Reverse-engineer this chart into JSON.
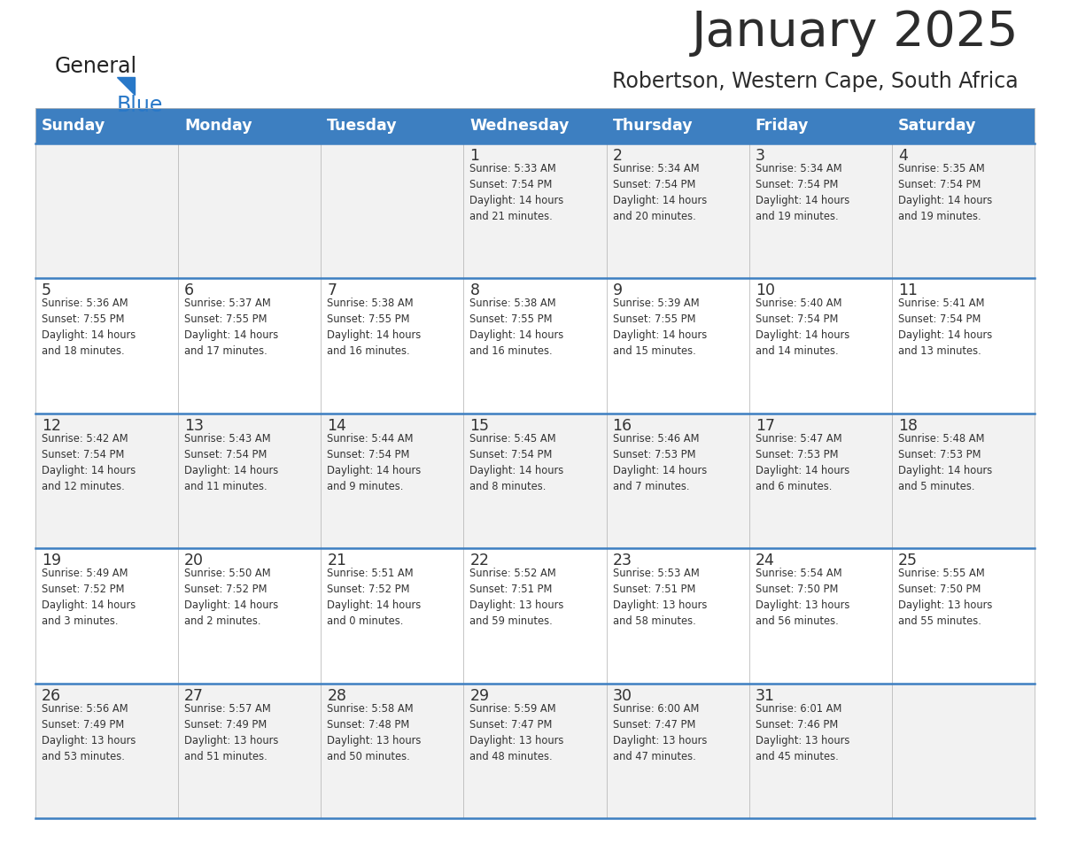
{
  "title": "January 2025",
  "subtitle": "Robertson, Western Cape, South Africa",
  "days_of_week": [
    "Sunday",
    "Monday",
    "Tuesday",
    "Wednesday",
    "Thursday",
    "Friday",
    "Saturday"
  ],
  "header_bg": "#3d7fc1",
  "header_text": "#ffffff",
  "row_bg_odd": "#f2f2f2",
  "row_bg_even": "#ffffff",
  "separator_color": "#3d7fc1",
  "text_color": "#333333",
  "title_color": "#2c2c2c",
  "subtitle_color": "#2c2c2c",
  "generalblue_black": "#222222",
  "generalblue_blue": "#2878c8",
  "calendar_data": [
    [
      {
        "day": null,
        "info": null
      },
      {
        "day": null,
        "info": null
      },
      {
        "day": null,
        "info": null
      },
      {
        "day": "1",
        "info": "Sunrise: 5:33 AM\nSunset: 7:54 PM\nDaylight: 14 hours\nand 21 minutes."
      },
      {
        "day": "2",
        "info": "Sunrise: 5:34 AM\nSunset: 7:54 PM\nDaylight: 14 hours\nand 20 minutes."
      },
      {
        "day": "3",
        "info": "Sunrise: 5:34 AM\nSunset: 7:54 PM\nDaylight: 14 hours\nand 19 minutes."
      },
      {
        "day": "4",
        "info": "Sunrise: 5:35 AM\nSunset: 7:54 PM\nDaylight: 14 hours\nand 19 minutes."
      }
    ],
    [
      {
        "day": "5",
        "info": "Sunrise: 5:36 AM\nSunset: 7:55 PM\nDaylight: 14 hours\nand 18 minutes."
      },
      {
        "day": "6",
        "info": "Sunrise: 5:37 AM\nSunset: 7:55 PM\nDaylight: 14 hours\nand 17 minutes."
      },
      {
        "day": "7",
        "info": "Sunrise: 5:38 AM\nSunset: 7:55 PM\nDaylight: 14 hours\nand 16 minutes."
      },
      {
        "day": "8",
        "info": "Sunrise: 5:38 AM\nSunset: 7:55 PM\nDaylight: 14 hours\nand 16 minutes."
      },
      {
        "day": "9",
        "info": "Sunrise: 5:39 AM\nSunset: 7:55 PM\nDaylight: 14 hours\nand 15 minutes."
      },
      {
        "day": "10",
        "info": "Sunrise: 5:40 AM\nSunset: 7:54 PM\nDaylight: 14 hours\nand 14 minutes."
      },
      {
        "day": "11",
        "info": "Sunrise: 5:41 AM\nSunset: 7:54 PM\nDaylight: 14 hours\nand 13 minutes."
      }
    ],
    [
      {
        "day": "12",
        "info": "Sunrise: 5:42 AM\nSunset: 7:54 PM\nDaylight: 14 hours\nand 12 minutes."
      },
      {
        "day": "13",
        "info": "Sunrise: 5:43 AM\nSunset: 7:54 PM\nDaylight: 14 hours\nand 11 minutes."
      },
      {
        "day": "14",
        "info": "Sunrise: 5:44 AM\nSunset: 7:54 PM\nDaylight: 14 hours\nand 9 minutes."
      },
      {
        "day": "15",
        "info": "Sunrise: 5:45 AM\nSunset: 7:54 PM\nDaylight: 14 hours\nand 8 minutes."
      },
      {
        "day": "16",
        "info": "Sunrise: 5:46 AM\nSunset: 7:53 PM\nDaylight: 14 hours\nand 7 minutes."
      },
      {
        "day": "17",
        "info": "Sunrise: 5:47 AM\nSunset: 7:53 PM\nDaylight: 14 hours\nand 6 minutes."
      },
      {
        "day": "18",
        "info": "Sunrise: 5:48 AM\nSunset: 7:53 PM\nDaylight: 14 hours\nand 5 minutes."
      }
    ],
    [
      {
        "day": "19",
        "info": "Sunrise: 5:49 AM\nSunset: 7:52 PM\nDaylight: 14 hours\nand 3 minutes."
      },
      {
        "day": "20",
        "info": "Sunrise: 5:50 AM\nSunset: 7:52 PM\nDaylight: 14 hours\nand 2 minutes."
      },
      {
        "day": "21",
        "info": "Sunrise: 5:51 AM\nSunset: 7:52 PM\nDaylight: 14 hours\nand 0 minutes."
      },
      {
        "day": "22",
        "info": "Sunrise: 5:52 AM\nSunset: 7:51 PM\nDaylight: 13 hours\nand 59 minutes."
      },
      {
        "day": "23",
        "info": "Sunrise: 5:53 AM\nSunset: 7:51 PM\nDaylight: 13 hours\nand 58 minutes."
      },
      {
        "day": "24",
        "info": "Sunrise: 5:54 AM\nSunset: 7:50 PM\nDaylight: 13 hours\nand 56 minutes."
      },
      {
        "day": "25",
        "info": "Sunrise: 5:55 AM\nSunset: 7:50 PM\nDaylight: 13 hours\nand 55 minutes."
      }
    ],
    [
      {
        "day": "26",
        "info": "Sunrise: 5:56 AM\nSunset: 7:49 PM\nDaylight: 13 hours\nand 53 minutes."
      },
      {
        "day": "27",
        "info": "Sunrise: 5:57 AM\nSunset: 7:49 PM\nDaylight: 13 hours\nand 51 minutes."
      },
      {
        "day": "28",
        "info": "Sunrise: 5:58 AM\nSunset: 7:48 PM\nDaylight: 13 hours\nand 50 minutes."
      },
      {
        "day": "29",
        "info": "Sunrise: 5:59 AM\nSunset: 7:47 PM\nDaylight: 13 hours\nand 48 minutes."
      },
      {
        "day": "30",
        "info": "Sunrise: 6:00 AM\nSunset: 7:47 PM\nDaylight: 13 hours\nand 47 minutes."
      },
      {
        "day": "31",
        "info": "Sunrise: 6:01 AM\nSunset: 7:46 PM\nDaylight: 13 hours\nand 45 minutes."
      },
      {
        "day": null,
        "info": null
      }
    ]
  ]
}
